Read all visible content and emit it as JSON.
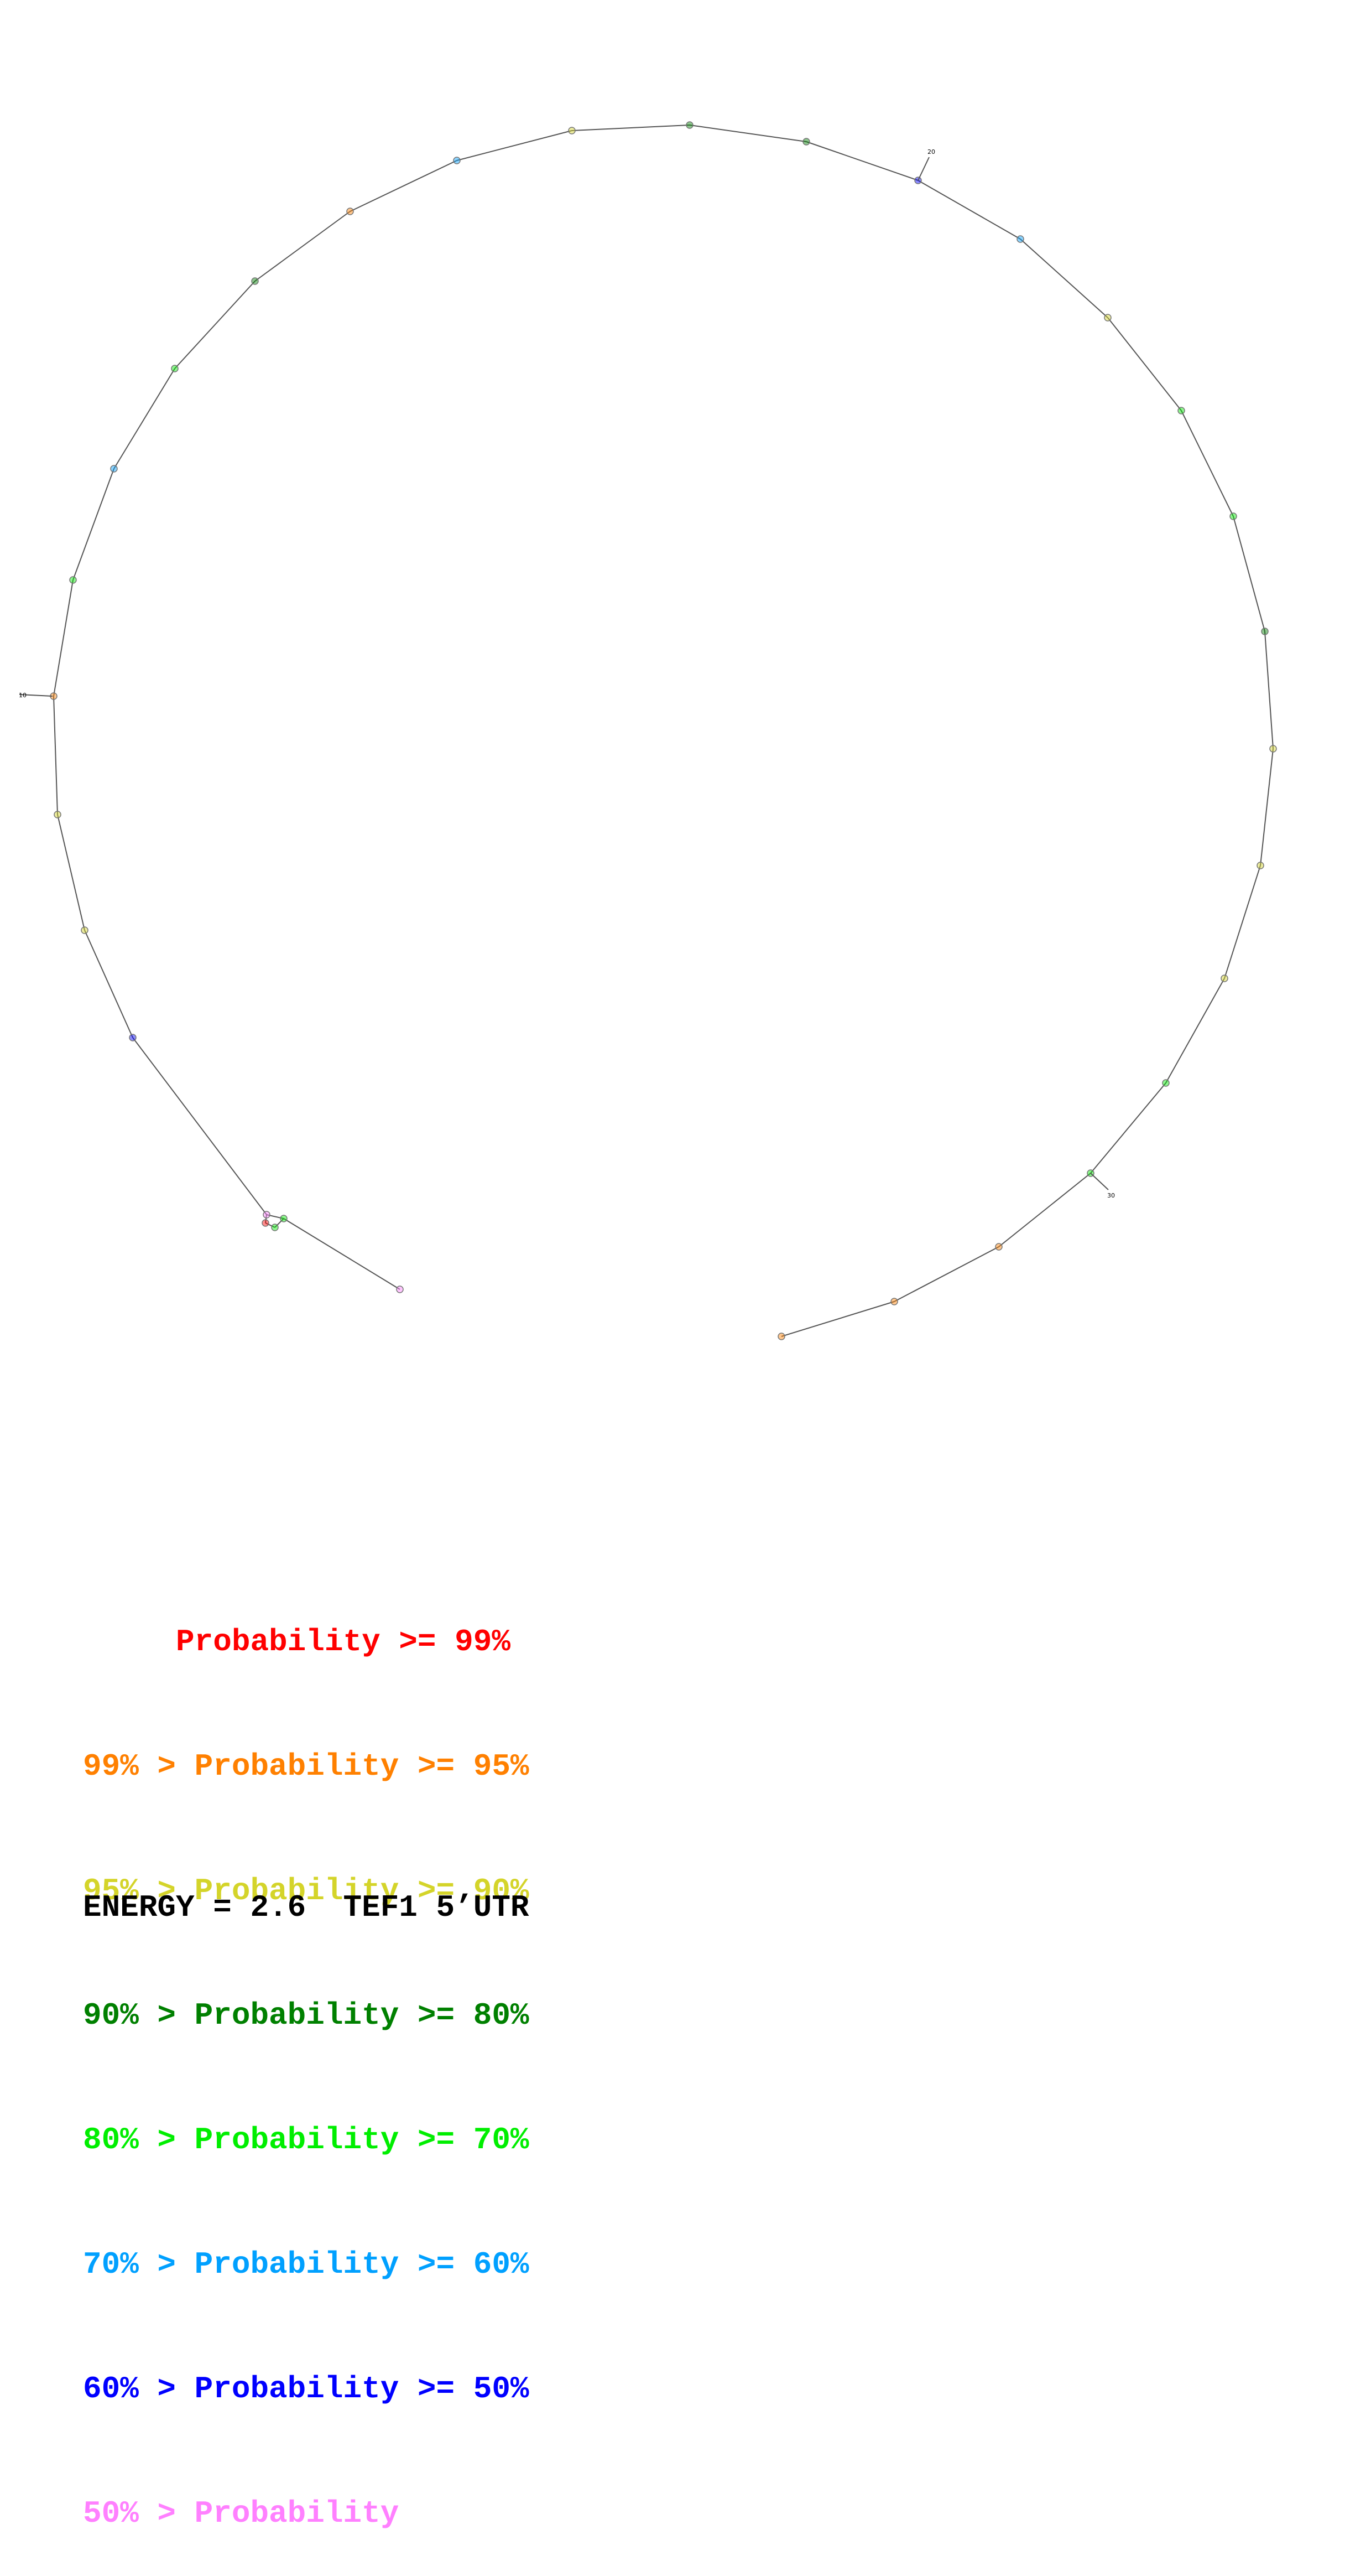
{
  "diagram": {
    "type": "rna-secondary-structure",
    "backbone_color": "#555555",
    "outline_color": "#777777",
    "position_labels": [
      "10",
      "20",
      "30"
    ],
    "nucleotide_probability_classes": [
      "pink",
      "green",
      "green",
      "red",
      "pink",
      "blue",
      "yellow",
      "yellow",
      "orange",
      "green",
      "sky",
      "green",
      "dgreen",
      "orange",
      "sky",
      "yellow",
      "dgreen",
      "dgreen",
      "blue",
      "sky",
      "yellow",
      "green",
      "green",
      "dgreen",
      "yellow",
      "yellow",
      "yellow",
      "green",
      "green",
      "orange",
      "orange",
      "orange"
    ]
  },
  "legend": {
    "rows": [
      {
        "text": "     Probability >= 99%",
        "color": "#ff0000",
        "key": "red"
      },
      {
        "text": "99% > Probability >= 95%",
        "color": "#ff8000",
        "key": "orange"
      },
      {
        "text": "95% > Probability >= 90%",
        "color": "#d4d42a",
        "key": "yellow"
      },
      {
        "text": "90% > Probability >= 80%",
        "color": "#008000",
        "key": "dgreen"
      },
      {
        "text": "80% > Probability >= 70%",
        "color": "#00ee00",
        "key": "green"
      },
      {
        "text": "70% > Probability >= 60%",
        "color": "#00a0ff",
        "key": "sky"
      },
      {
        "text": "60% > Probability >= 50%",
        "color": "#0000ff",
        "key": "blue"
      },
      {
        "text": "50% > Probability",
        "color": "#ff80ff",
        "key": "pink"
      }
    ]
  },
  "energy_line": "ENERGY = 2.6  TEF1 5’UTR"
}
